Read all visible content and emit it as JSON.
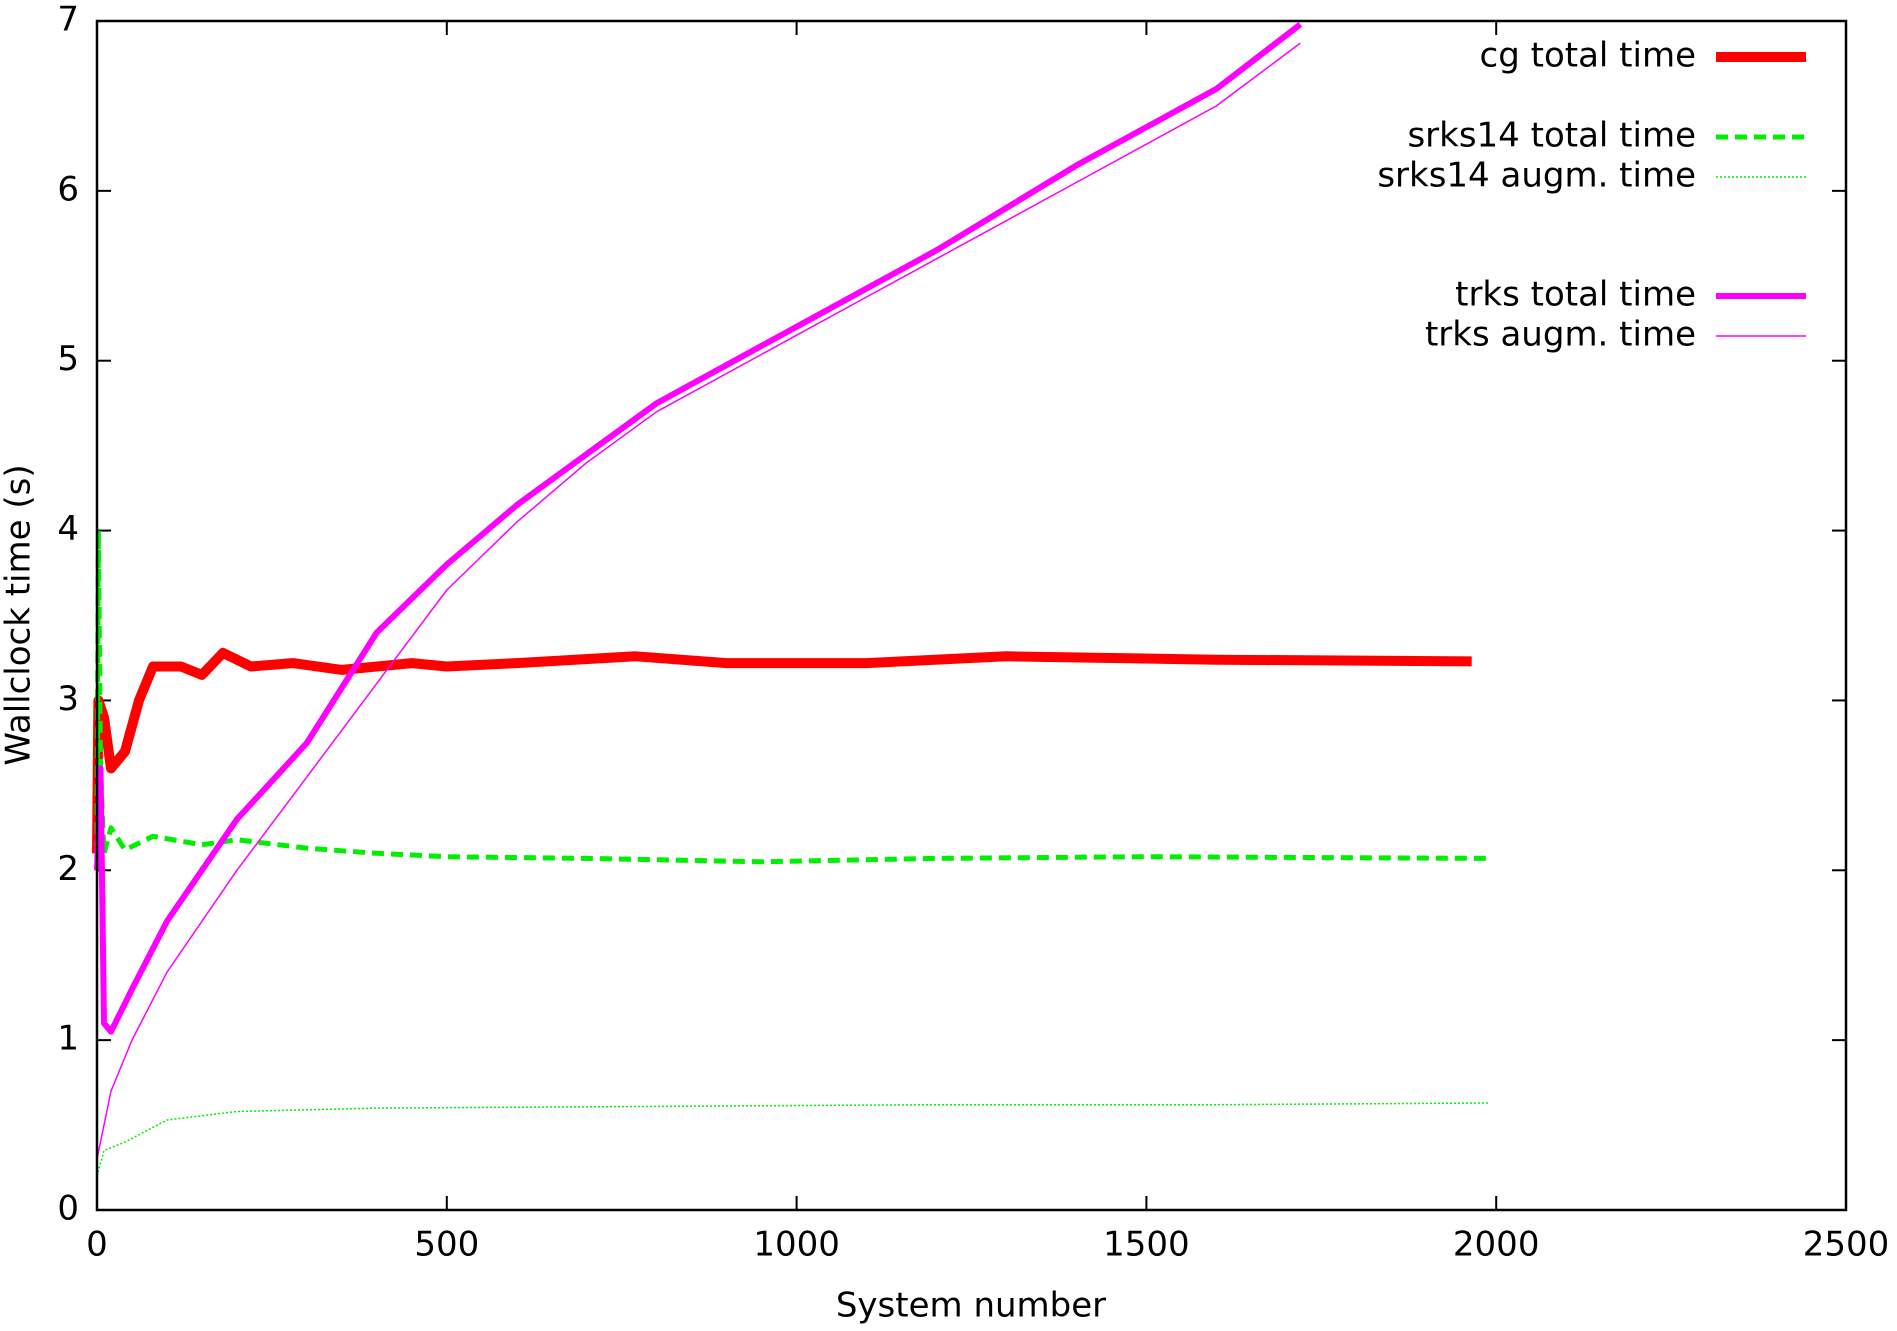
{
  "chart_data": {
    "type": "line",
    "xlabel": "System number",
    "ylabel": "Wallclock time (s)",
    "xlim": [
      0,
      2500
    ],
    "xticks": [
      0,
      500,
      1000,
      1500,
      2000,
      2500
    ],
    "ylim": [
      0,
      7
    ],
    "yticks": [
      0,
      1,
      2,
      3,
      4,
      5,
      6,
      7
    ],
    "grid": false,
    "legend": "top right",
    "series": [
      {
        "name": "cg total time",
        "color": "#ff0000",
        "style": "solid",
        "x": [
          0,
          2,
          10,
          20,
          40,
          60,
          80,
          120,
          150,
          180,
          220,
          280,
          350,
          450,
          500,
          600,
          770,
          900,
          1100,
          1300,
          1600,
          1965
        ],
        "values": [
          2.1,
          3.0,
          2.9,
          2.6,
          2.7,
          3.0,
          3.2,
          3.2,
          3.15,
          3.28,
          3.2,
          3.22,
          3.18,
          3.22,
          3.2,
          3.22,
          3.26,
          3.22,
          3.22,
          3.26,
          3.24,
          3.23
        ]
      },
      {
        "name": "srks14 total time",
        "color": "#00ee00",
        "style": "dashed",
        "x": [
          0,
          2,
          5,
          10,
          20,
          40,
          80,
          150,
          200,
          300,
          400,
          500,
          700,
          950,
          1200,
          1500,
          1990
        ],
        "values": [
          2.1,
          4.0,
          2.6,
          2.1,
          2.25,
          2.12,
          2.2,
          2.15,
          2.18,
          2.13,
          2.1,
          2.08,
          2.07,
          2.05,
          2.07,
          2.08,
          2.07
        ]
      },
      {
        "name": "srks14 augm. time",
        "color": "#00ee00",
        "style": "dotted",
        "x": [
          0,
          10,
          40,
          100,
          200,
          400,
          800,
          1200,
          1600,
          1990
        ],
        "values": [
          0.2,
          0.35,
          0.4,
          0.53,
          0.58,
          0.6,
          0.61,
          0.62,
          0.62,
          0.63
        ]
      },
      {
        "name": "trks total time",
        "color": "#ff00ff",
        "style": "solid",
        "x": [
          0,
          5,
          10,
          20,
          50,
          100,
          200,
          300,
          400,
          500,
          600,
          700,
          800,
          1000,
          1200,
          1400,
          1600,
          1720
        ],
        "values": [
          2.0,
          2.6,
          1.1,
          1.05,
          1.3,
          1.7,
          2.3,
          2.75,
          3.4,
          3.8,
          4.15,
          4.45,
          4.75,
          5.2,
          5.65,
          6.15,
          6.6,
          6.98
        ]
      },
      {
        "name": "trks augm. time",
        "color": "#ff00ff",
        "style": "solid",
        "x": [
          0,
          20,
          50,
          100,
          200,
          300,
          400,
          500,
          600,
          700,
          800,
          1000,
          1200,
          1400,
          1600,
          1720
        ],
        "values": [
          0.3,
          0.7,
          1.0,
          1.4,
          2.0,
          2.55,
          3.1,
          3.65,
          4.05,
          4.4,
          4.7,
          5.15,
          5.6,
          6.05,
          6.5,
          6.87
        ]
      }
    ]
  }
}
